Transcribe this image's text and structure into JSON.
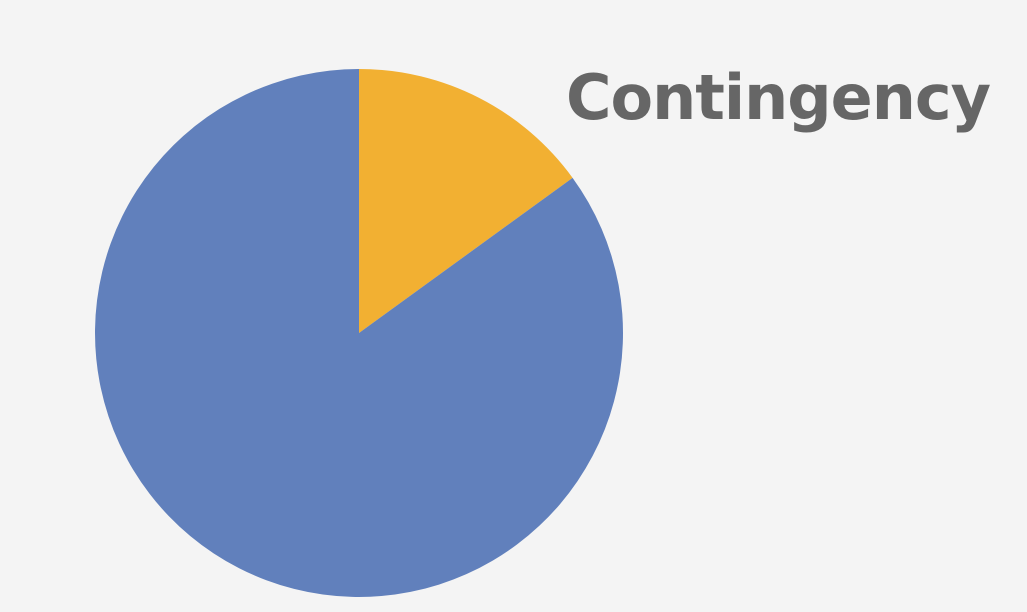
{
  "chart_data": {
    "type": "pie",
    "title": "Contingency",
    "categories": [
      "",
      ""
    ],
    "values": [
      15,
      85
    ],
    "colors": [
      "#F2B032",
      "#6180BC"
    ],
    "start_angle_deg": 0,
    "direction": "clockwise",
    "legend": "none",
    "data_labels": "none"
  },
  "colors": {
    "background": "#F4F4F4",
    "title": "#666666"
  }
}
